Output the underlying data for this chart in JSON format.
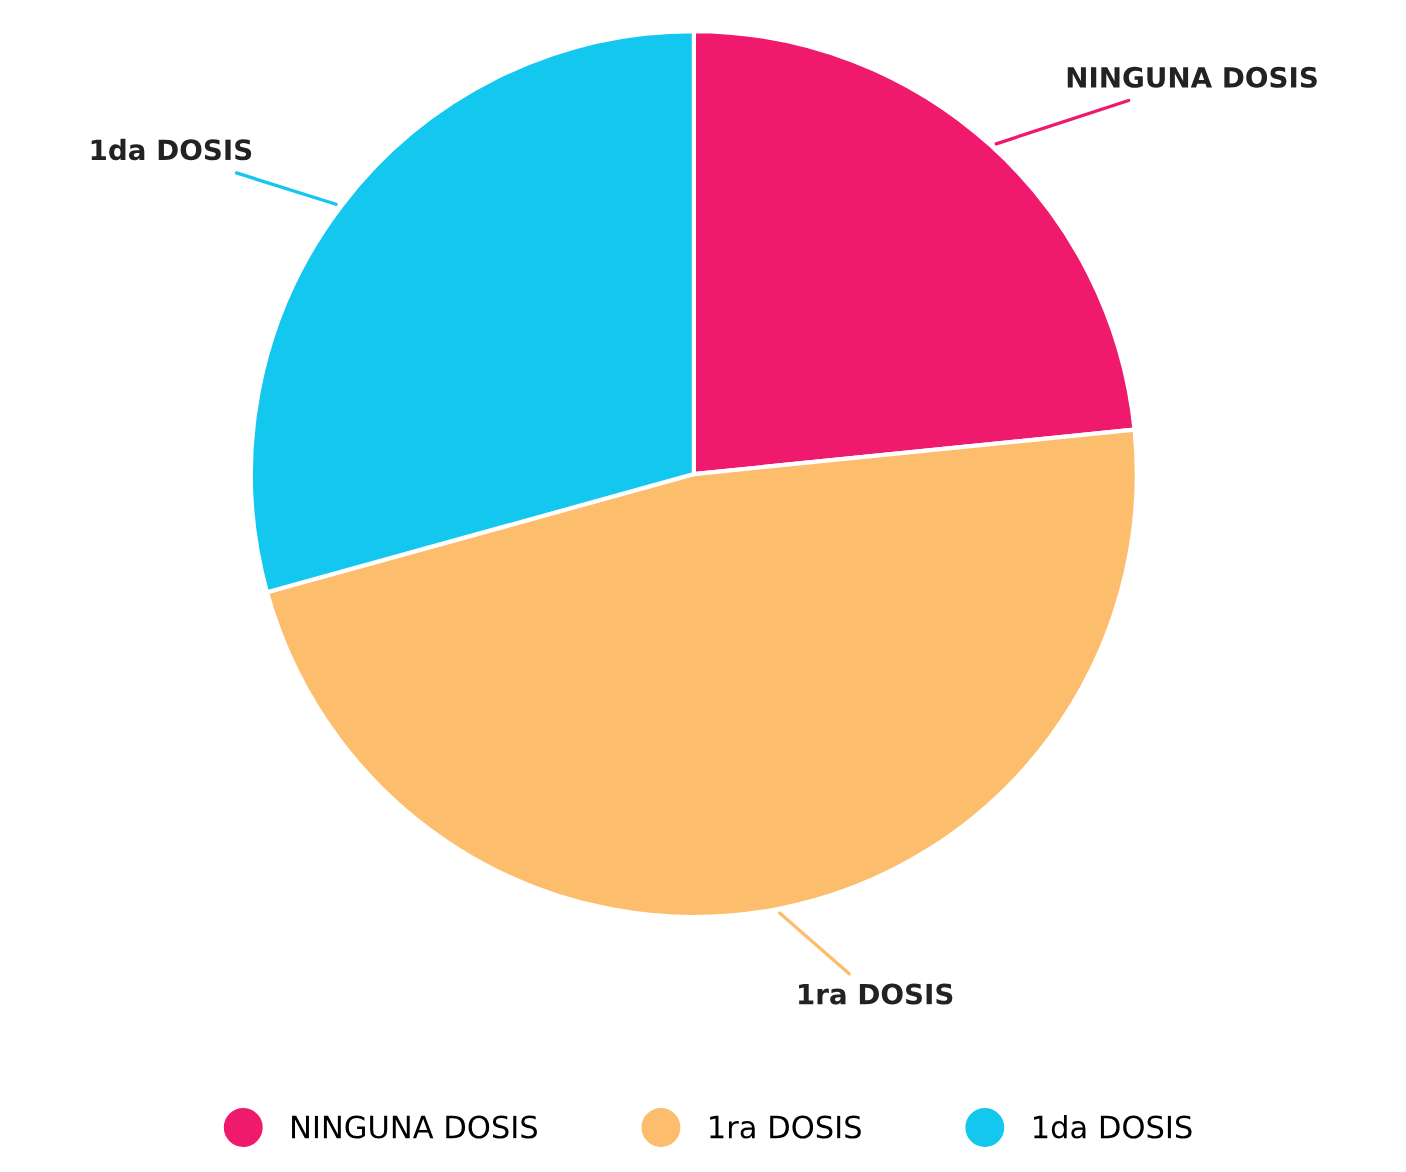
{
  "chart_data": {
    "type": "pie",
    "categories": [
      "NINGUNA DOSIS",
      "1ra DOSIS",
      "1da DOSIS"
    ],
    "values": [
      23.4,
      47.3,
      29.3
    ],
    "colors": [
      "#ef1a6e",
      "#fcbd6c",
      "#14c7ee"
    ],
    "legend": "bottom"
  }
}
